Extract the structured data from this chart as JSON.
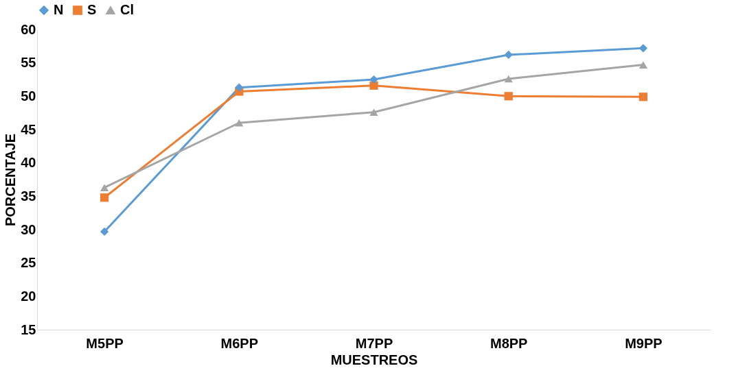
{
  "chart_data": {
    "type": "line",
    "xlabel": "MUESTREOS",
    "ylabel": "PORCENTAJE",
    "categories": [
      "M5PP",
      "M6PP",
      "M7PP",
      "M8PP",
      "M9PP"
    ],
    "series": [
      {
        "name": "N",
        "color": "#5b9bd5",
        "marker": "diamond",
        "values": [
          29.7,
          51.3,
          52.5,
          56.2,
          57.2
        ]
      },
      {
        "name": "S",
        "color": "#ed7d31",
        "marker": "square",
        "values": [
          34.8,
          50.7,
          51.6,
          50.0,
          49.9
        ]
      },
      {
        "name": "Cl",
        "color": "#a5a5a5",
        "marker": "triangle",
        "values": [
          36.3,
          46.0,
          47.6,
          52.6,
          54.7
        ]
      }
    ],
    "ylim": [
      15,
      60
    ],
    "yticks": [
      15,
      20,
      25,
      30,
      35,
      40,
      45,
      50,
      55,
      60
    ],
    "grid": false,
    "legend": "top",
    "line_style": "solid"
  }
}
